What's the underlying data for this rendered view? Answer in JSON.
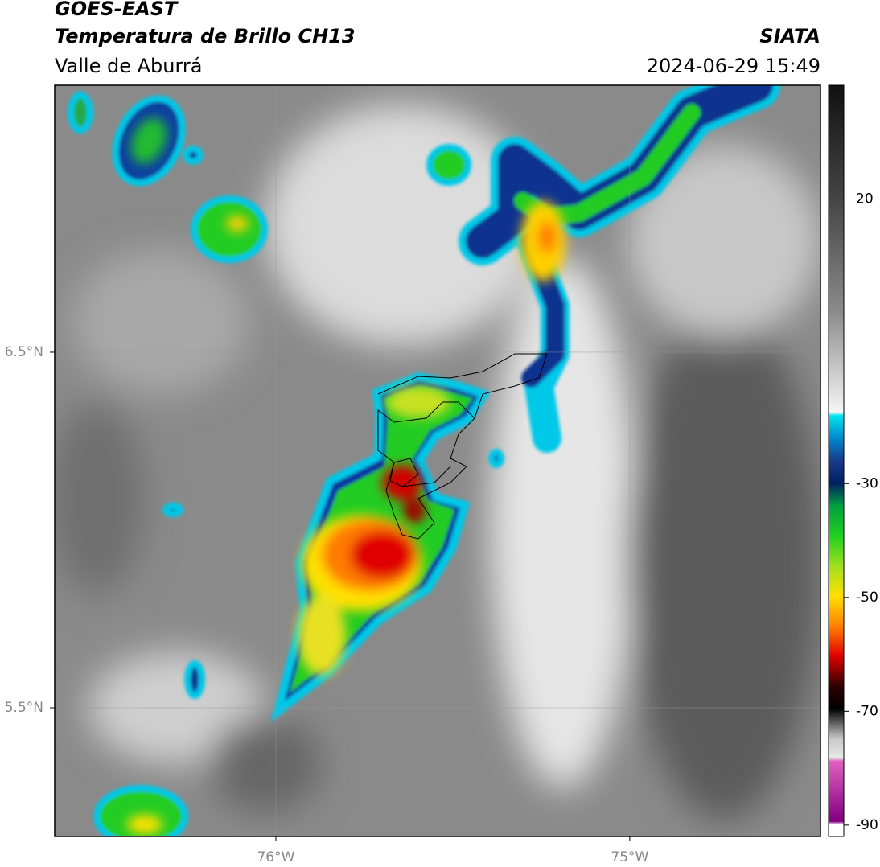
{
  "header": {
    "title": "GOES-EAST",
    "subtitle": "Temperatura de Brillo CH13",
    "region": "Valle de Aburrá",
    "source": "SIATA",
    "datetime": "2024-06-29 15:49"
  },
  "map": {
    "xlim": [
      -76.625,
      -74.461
    ],
    "ylim": [
      5.138,
      7.251
    ],
    "xticks": [
      {
        "value": -76,
        "label": "76°W"
      },
      {
        "value": -75,
        "label": "75°W"
      }
    ],
    "yticks": [
      {
        "value": 6.5,
        "label": "6.5°N"
      },
      {
        "value": 5.5,
        "label": "5.5°N"
      }
    ],
    "grid": true
  },
  "colorbar": {
    "lim": [
      -92,
      40
    ],
    "ticks": [
      20,
      -30,
      -50,
      -70,
      -90
    ]
  }
}
